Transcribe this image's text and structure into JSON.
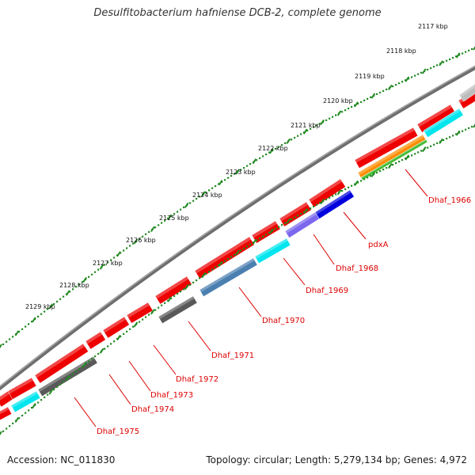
{
  "title": "Desulfitobacterium hafniense DCB-2, complete genome",
  "footer": {
    "accession": "Accession: NC_011830",
    "summary": "Topology: circular; Length: 5,279,134 bp; Genes: 4,972"
  },
  "colors": {
    "background": "#ffffff",
    "backbone": "#808080",
    "forward_cds": "#ee0000",
    "tick_green": "#228b22",
    "label_red": "#dd0000",
    "cyan": "#00e5ee",
    "blue": "#0000dd",
    "purple": "#7b68ee",
    "steel": "#4a7fb0",
    "gray": "#595959",
    "light_gray": "#bdbdbd",
    "orange": "#ff8c00",
    "green": "#44bb33"
  },
  "kbp_labels": [
    "2117 kbp",
    "2118 kbp",
    "2119 kbp",
    "2120 kbp",
    "2121 kbp",
    "2122 kbp",
    "2123 kbp",
    "2124 kbp",
    "2125 kbp",
    "2126 kbp",
    "2127 kbp",
    "2128 kbp",
    "2129 kbp"
  ],
  "genes": [
    {
      "label": "Dhaf_1966",
      "color": "#7cfc00"
    },
    {
      "label": "pdxA",
      "color": "#0000dd"
    },
    {
      "label": "Dhaf_1968",
      "color": "#7b68ee"
    },
    {
      "label": "Dhaf_1969",
      "color": "#00cdcd"
    },
    {
      "label": "Dhaf_1970",
      "color": "#4a7fb0"
    },
    {
      "label": "Dhaf_1971",
      "color": "#595959"
    },
    {
      "label": "Dhaf_1972",
      "color": "#ee0000"
    },
    {
      "label": "Dhaf_1973",
      "color": "#ee0000"
    },
    {
      "label": "Dhaf_1974",
      "color": "#595959"
    },
    {
      "label": "Dhaf_1975",
      "color": "#00e5ee"
    }
  ]
}
